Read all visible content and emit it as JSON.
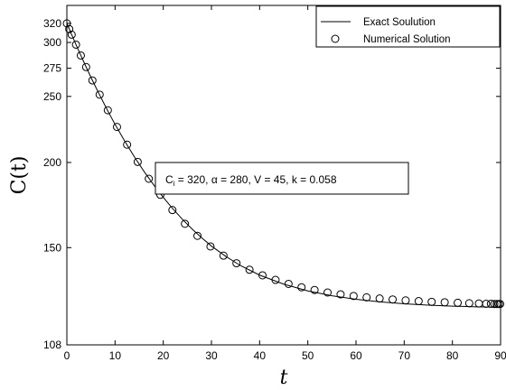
{
  "chart_data": {
    "type": "line",
    "title": "",
    "xlabel": "t",
    "ylabel": "C(t)",
    "xlim": [
      0,
      90
    ],
    "ylim": [
      108,
      340
    ],
    "yscale": "log",
    "xticks": [
      0,
      10,
      20,
      30,
      40,
      50,
      60,
      70,
      80,
      90
    ],
    "yticks": [
      108,
      150,
      200,
      250,
      275,
      300,
      320
    ],
    "grid": false,
    "legend_position": "top-right",
    "annotation": {
      "main": "C",
      "sub": "i",
      "rest": " = 320,  α = 280,  V = 45,  k = 0.058"
    },
    "series": [
      {
        "name": "Exact Soulution",
        "style": "solid-line",
        "color": "#000000",
        "x": [
          0,
          1,
          2,
          3,
          4,
          5,
          6,
          7,
          8,
          9,
          10,
          12,
          14,
          16,
          18,
          20,
          22,
          24,
          26,
          28,
          30,
          33,
          36,
          40,
          45,
          50,
          55,
          60,
          65,
          70,
          75,
          80,
          85,
          90
        ],
        "y": [
          320,
          308.0,
          296.7,
          286.1,
          276.1,
          266.7,
          257.9,
          249.6,
          241.8,
          234.4,
          227.5,
          215.0,
          203.9,
          194.1,
          185.5,
          177.8,
          171.0,
          165.0,
          159.7,
          155.0,
          150.8,
          145.6,
          141.2,
          136.7,
          132.6,
          129.6,
          127.5,
          126.0,
          124.9,
          124.1,
          123.5,
          123.1,
          122.8,
          122.6
        ]
      },
      {
        "name": "Numerical Solution",
        "style": "open-circle-markers",
        "color": "#000000",
        "x": [
          0,
          0.5,
          1,
          1.9,
          2.9,
          4.0,
          5.3,
          6.8,
          8.5,
          10.4,
          12.5,
          14.7,
          17.0,
          19.4,
          21.9,
          24.5,
          27.1,
          29.8,
          32.5,
          35.2,
          37.9,
          40.6,
          43.3,
          46.0,
          48.7,
          51.4,
          54.1,
          56.8,
          59.5,
          62.2,
          64.9,
          67.6,
          70.3,
          73.0,
          75.7,
          78.4,
          81.1,
          83.5,
          85.5,
          87.0,
          88.0,
          88.7,
          89.2,
          89.6,
          89.9
        ],
        "y": [
          320,
          313.9,
          308.0,
          297.8,
          287.1,
          276.1,
          263.9,
          251.5,
          238.6,
          225.5,
          212.4,
          200.4,
          189.3,
          179.3,
          170.3,
          162.6,
          156.1,
          150.6,
          146.0,
          142.3,
          139.2,
          136.6,
          134.5,
          132.7,
          131.2,
          130.0,
          128.9,
          128.1,
          127.4,
          126.8,
          126.3,
          125.9,
          125.5,
          125.2,
          124.9,
          124.7,
          124.5,
          124.3,
          124.2,
          124.1,
          124.1,
          124.0,
          124.0,
          124.0,
          124.0
        ]
      }
    ]
  }
}
